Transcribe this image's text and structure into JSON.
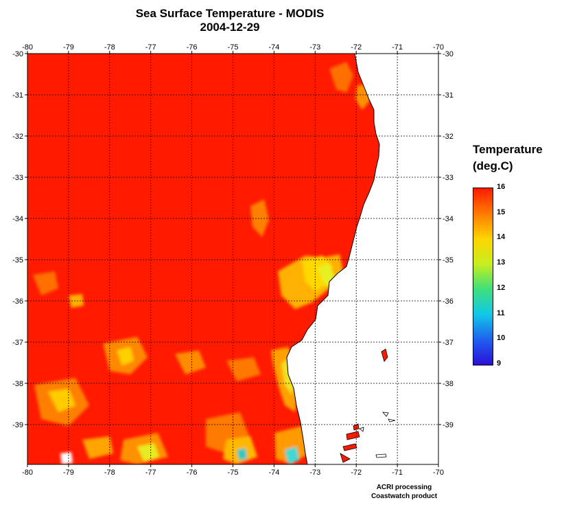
{
  "map": {
    "title": "Sea Surface Temperature - MODIS",
    "date": "2004-12-29",
    "longitude_ticks": [
      "-80",
      "-79",
      "-78",
      "-77",
      "-76",
      "-75",
      "-74",
      "-73",
      "-72",
      "-71",
      "-70"
    ],
    "latitude_ticks": [
      "-30",
      "-31",
      "-32",
      "-33",
      "-34",
      "-35",
      "-36",
      "-37",
      "-38",
      "-39"
    ],
    "colors": {
      "ocean_warm": "#ff1a00",
      "land": "#ffffff"
    }
  },
  "legend": {
    "title_line1": "Temperature",
    "title_line2": "(deg.C)",
    "labels": [
      "16",
      "15",
      "14",
      "13",
      "12",
      "11",
      "10",
      "9"
    ],
    "stops": [
      {
        "value": 16,
        "color": "#ff1a00"
      },
      {
        "value": 15,
        "color": "#ff7a00"
      },
      {
        "value": 14,
        "color": "#ffd400"
      },
      {
        "value": 13,
        "color": "#c8ee1e"
      },
      {
        "value": 12,
        "color": "#3ee07a"
      },
      {
        "value": 11,
        "color": "#10c8e8"
      },
      {
        "value": 10,
        "color": "#2060f0"
      },
      {
        "value": 9,
        "color": "#2a10d8"
      }
    ]
  },
  "credits": {
    "line1": "ACRI processing",
    "line2": "Coastwatch product"
  }
}
